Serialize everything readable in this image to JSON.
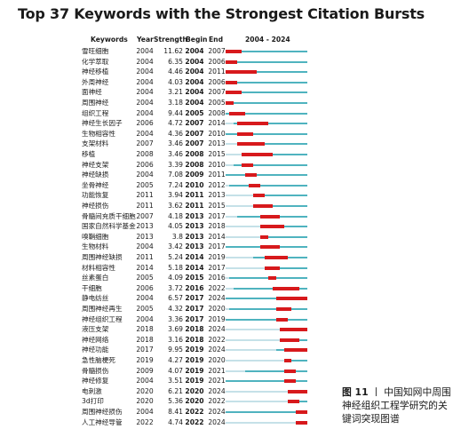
{
  "chart_data": {
    "type": "table",
    "title": "Top 37 Keywords with the Strongest Citation Bursts",
    "columns": [
      "Keywords",
      "Year",
      "Strength",
      "Begin",
      "End",
      "2004 - 2024"
    ],
    "range": [
      2004,
      2024
    ],
    "colors": {
      "burst": "#d7191c",
      "active": "#4fb3bf",
      "inactive": "#c5e1e8"
    },
    "rows": [
      {
        "keyword": "雪旺细胞",
        "year": 2004,
        "strength": "11.62",
        "begin": 2004,
        "end": 2007
      },
      {
        "keyword": "化学萃取",
        "year": 2004,
        "strength": "6.35",
        "begin": 2004,
        "end": 2006
      },
      {
        "keyword": "神经移植",
        "year": 2004,
        "strength": "4.46",
        "begin": 2004,
        "end": 2011
      },
      {
        "keyword": "外周神经",
        "year": 2004,
        "strength": "4.03",
        "begin": 2004,
        "end": 2006
      },
      {
        "keyword": "面神经",
        "year": 2004,
        "strength": "3.21",
        "begin": 2004,
        "end": 2007
      },
      {
        "keyword": "周围神经",
        "year": 2004,
        "strength": "3.18",
        "begin": 2004,
        "end": 2005
      },
      {
        "keyword": "组织工程",
        "year": 2004,
        "strength": "9.44",
        "begin": 2005,
        "end": 2008
      },
      {
        "keyword": "神经生长因子",
        "year": 2006,
        "strength": "4.72",
        "begin": 2007,
        "end": 2014
      },
      {
        "keyword": "生物相容性",
        "year": 2004,
        "strength": "4.36",
        "begin": 2007,
        "end": 2010
      },
      {
        "keyword": "支架材料",
        "year": 2007,
        "strength": "3.46",
        "begin": 2007,
        "end": 2013
      },
      {
        "keyword": "移植",
        "year": 2008,
        "strength": "3.46",
        "begin": 2008,
        "end": 2015
      },
      {
        "keyword": "神经支架",
        "year": 2006,
        "strength": "3.39",
        "begin": 2008,
        "end": 2010
      },
      {
        "keyword": "神经缺损",
        "year": 2004,
        "strength": "7.08",
        "begin": 2009,
        "end": 2011
      },
      {
        "keyword": "坐骨神经",
        "year": 2005,
        "strength": "7.24",
        "begin": 2010,
        "end": 2012
      },
      {
        "keyword": "功能恢复",
        "year": 2011,
        "strength": "3.94",
        "begin": 2011,
        "end": 2013
      },
      {
        "keyword": "神经损伤",
        "year": 2011,
        "strength": "3.62",
        "begin": 2011,
        "end": 2015
      },
      {
        "keyword": "骨髓间充质干细胞",
        "year": 2007,
        "strength": "4.18",
        "begin": 2013,
        "end": 2017
      },
      {
        "keyword": "国家自然科学基金",
        "year": 2013,
        "strength": "4.05",
        "begin": 2013,
        "end": 2018
      },
      {
        "keyword": "嗅鞘细胞",
        "year": 2013,
        "strength": "3.8",
        "begin": 2013,
        "end": 2014
      },
      {
        "keyword": "生物材料",
        "year": 2004,
        "strength": "3.42",
        "begin": 2013,
        "end": 2017
      },
      {
        "keyword": "周围神经缺损",
        "year": 2011,
        "strength": "5.24",
        "begin": 2014,
        "end": 2019
      },
      {
        "keyword": "材料相容性",
        "year": 2014,
        "strength": "5.18",
        "begin": 2014,
        "end": 2017
      },
      {
        "keyword": "丝素蛋白",
        "year": 2005,
        "strength": "4.09",
        "begin": 2015,
        "end": 2016
      },
      {
        "keyword": "干细胞",
        "year": 2006,
        "strength": "3.72",
        "begin": 2016,
        "end": 2022
      },
      {
        "keyword": "静电纺丝",
        "year": 2004,
        "strength": "6.57",
        "begin": 2017,
        "end": 2024
      },
      {
        "keyword": "周围神经再生",
        "year": 2005,
        "strength": "4.32",
        "begin": 2017,
        "end": 2020
      },
      {
        "keyword": "神经组织工程",
        "year": 2004,
        "strength": "3.36",
        "begin": 2017,
        "end": 2019
      },
      {
        "keyword": "液压支架",
        "year": 2018,
        "strength": "3.69",
        "begin": 2018,
        "end": 2024
      },
      {
        "keyword": "神经网络",
        "year": 2018,
        "strength": "3.16",
        "begin": 2018,
        "end": 2022
      },
      {
        "keyword": "神经功能",
        "year": 2017,
        "strength": "9.95",
        "begin": 2019,
        "end": 2024
      },
      {
        "keyword": "急性脑梗死",
        "year": 2019,
        "strength": "4.27",
        "begin": 2019,
        "end": 2020
      },
      {
        "keyword": "骨髓损伤",
        "year": 2009,
        "strength": "4.07",
        "begin": 2019,
        "end": 2021
      },
      {
        "keyword": "神经修复",
        "year": 2004,
        "strength": "3.51",
        "begin": 2019,
        "end": 2021
      },
      {
        "keyword": "电刺激",
        "year": 2020,
        "strength": "6.21",
        "begin": 2020,
        "end": 2024
      },
      {
        "keyword": "3d打印",
        "year": 2020,
        "strength": "5.36",
        "begin": 2020,
        "end": 2022
      },
      {
        "keyword": "周围神经损伤",
        "year": 2004,
        "strength": "8.41",
        "begin": 2022,
        "end": 2024
      },
      {
        "keyword": "人工神经导管",
        "year": 2022,
        "strength": "4.74",
        "begin": 2022,
        "end": 2024
      }
    ]
  },
  "caption": {
    "figure": "图 11",
    "separator": "丨",
    "text": "中国知网中周围神经组织工程学研究的关键词突现图谱"
  }
}
